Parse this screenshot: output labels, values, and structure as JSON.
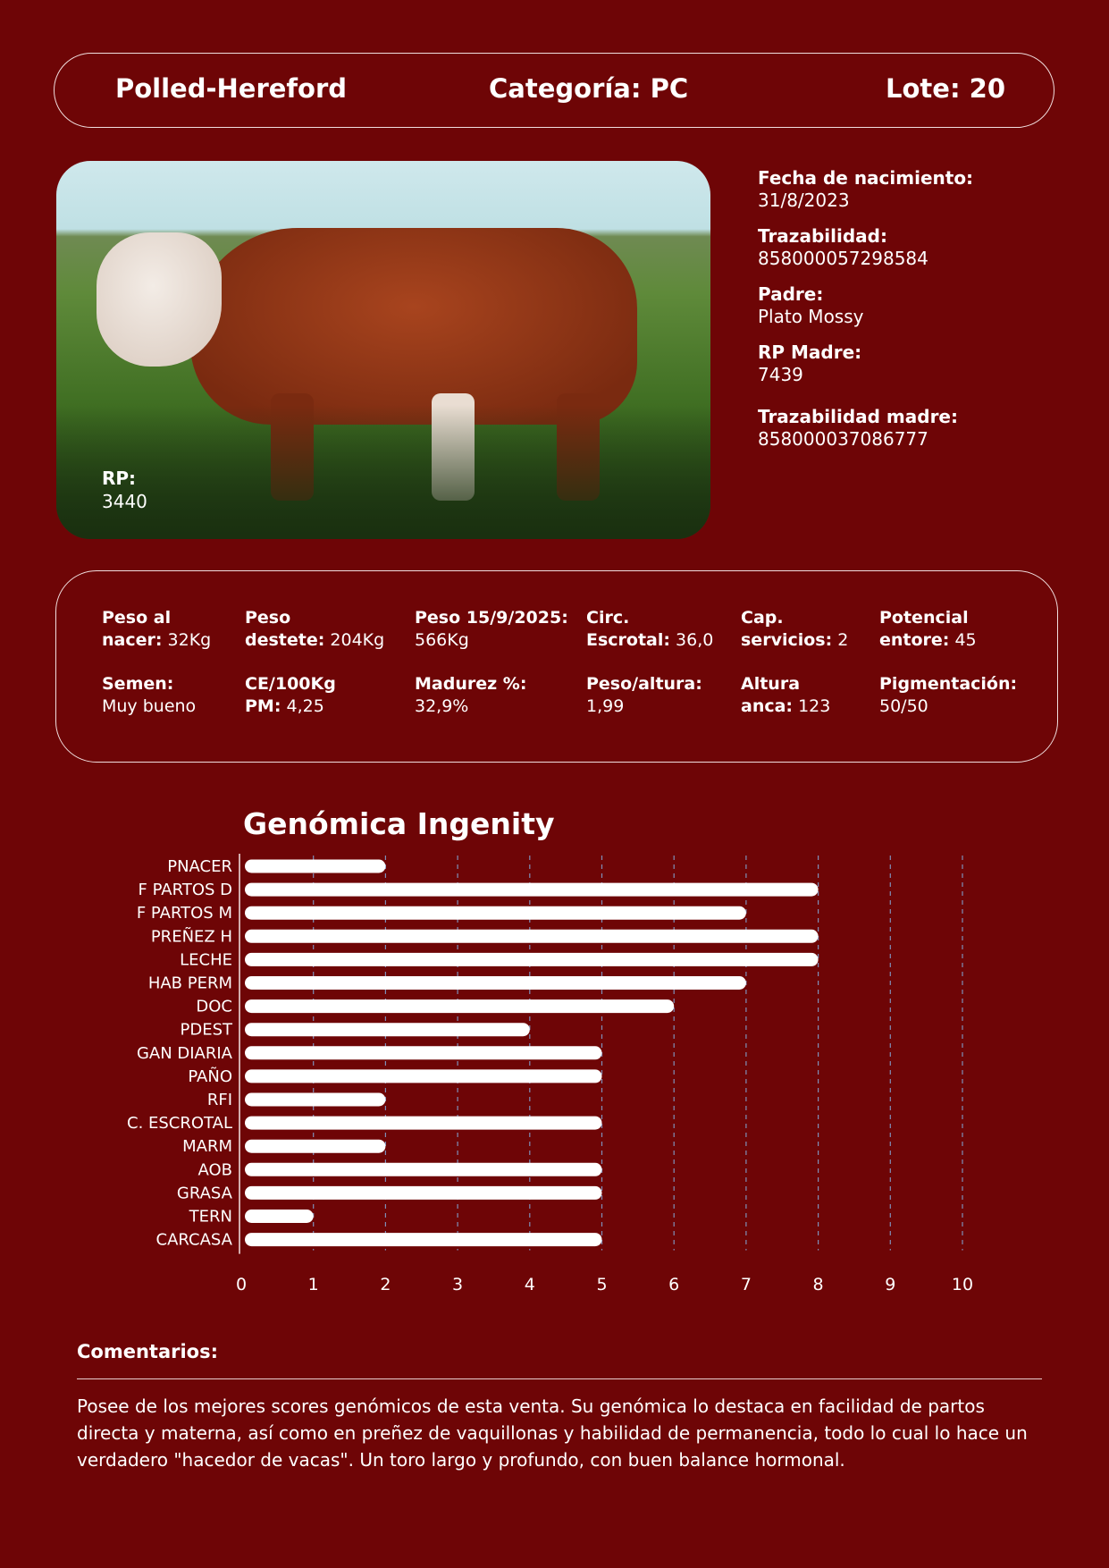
{
  "header": {
    "breed": "Polled-Hereford",
    "category": "Categoría: PC",
    "lot": "Lote: 20"
  },
  "photo": {
    "rp_label": "RP:",
    "rp_value": "3440"
  },
  "info": [
    {
      "label": "Fecha de nacimiento:",
      "value": "31/8/2023"
    },
    {
      "label": "Trazabilidad:",
      "value": "858000057298584"
    },
    {
      "label": "Padre:",
      "value": "Plato Mossy"
    },
    {
      "label": "RP Madre:",
      "value": "7439"
    },
    {
      "label": "Trazabilidad madre:",
      "value": "858000037086777"
    }
  ],
  "stats": [
    {
      "label1": "Peso al",
      "label2": "nacer:",
      "value": "32Kg"
    },
    {
      "label1": "Peso",
      "label2": "destete:",
      "value": "204Kg"
    },
    {
      "label1": "Peso 15/9/2025:",
      "label2": "",
      "value": "566Kg"
    },
    {
      "label1": "Circ.",
      "label2": "Escrotal:",
      "value": "36,0"
    },
    {
      "label1": "Cap.",
      "label2": "servicios:",
      "value": "2"
    },
    {
      "label1": "Potencial",
      "label2": "entore:",
      "value": "45"
    },
    {
      "label1": "Semen:",
      "label2": "",
      "value": "Muy bueno"
    },
    {
      "label1": "CE/100Kg",
      "label2": "PM:",
      "value": "4,25"
    },
    {
      "label1": "Madurez %:",
      "label2": "",
      "value": "32,9%"
    },
    {
      "label1": "Peso/altura:",
      "label2": "",
      "value": "1,99"
    },
    {
      "label1": "Altura",
      "label2": "anca:",
      "value": "123"
    },
    {
      "label1": "Pigmentación:",
      "label2": "",
      "value": "50/50"
    }
  ],
  "chart_data": {
    "type": "bar",
    "orientation": "horizontal",
    "title": "Genómica Ingenity",
    "categories": [
      "PNACER",
      "F PARTOS D",
      "F PARTOS M",
      "PREÑEZ H",
      "LECHE",
      "HAB PERM",
      "DOC",
      "PDEST",
      "GAN DIARIA",
      "PAÑO",
      "RFI",
      "C. ESCROTAL",
      "MARM",
      "AOB",
      "GRASA",
      "TERN",
      "CARCASA"
    ],
    "values": [
      2,
      8,
      7,
      8,
      8,
      7,
      6,
      4,
      5,
      5,
      2,
      5,
      2,
      5,
      5,
      1,
      5
    ],
    "xlim": [
      0,
      10
    ],
    "xticks": [
      "0",
      "1",
      "2",
      "3",
      "4",
      "5",
      "6",
      "7",
      "8",
      "9",
      "10"
    ],
    "grid": "vertical dashed",
    "bar_color": "#ffffff",
    "grid_color": "#7f8fb8"
  },
  "comments": {
    "title": "Comentarios:",
    "text": "Posee de los mejores scores genómicos de esta venta. Su genómica lo destaca en facilidad de partos directa y materna, así como en preñez de vaquillonas y habilidad de permanencia, todo lo cual lo hace un verdadero \"hacedor de vacas\". Un toro largo y profundo, con buen balance hormonal."
  }
}
